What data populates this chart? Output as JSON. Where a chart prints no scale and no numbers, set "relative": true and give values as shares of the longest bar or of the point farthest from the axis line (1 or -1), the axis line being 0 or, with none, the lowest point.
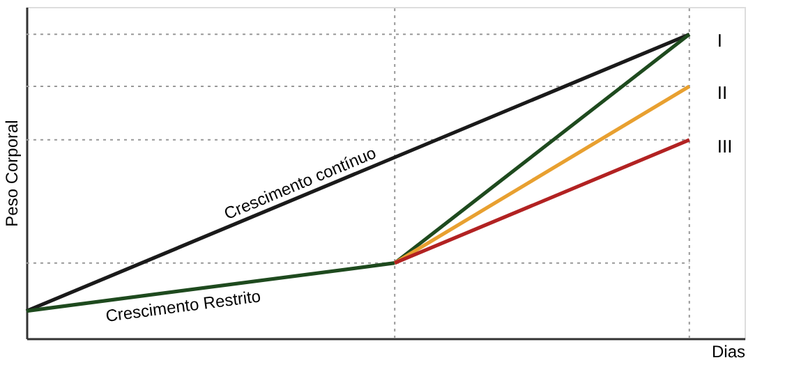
{
  "chart_data": {
    "type": "line",
    "relative": true,
    "xlabel": "Dias",
    "ylabel": "Peso Corporal",
    "categories": [
      null,
      null,
      null,
      null,
      null,
      null,
      null,
      null,
      null,
      null
    ],
    "series": [
      {
        "name": "Crescimento contínuo",
        "color": "#1a1a1a",
        "values": [
          0.09,
          null,
          null,
          null,
          null,
          null,
          null,
          null,
          null,
          1.0
        ]
      },
      {
        "name": "Crescimento Restrito",
        "color": "#1e4a1e",
        "values": [
          0.09,
          null,
          null,
          null,
          null,
          0.248,
          null,
          null,
          null,
          null
        ]
      },
      {
        "name": "I",
        "color": "#1e4a1e",
        "values": [
          null,
          null,
          null,
          null,
          null,
          0.248,
          null,
          null,
          null,
          1.0
        ]
      },
      {
        "name": "II",
        "color": "#e8a030",
        "values": [
          null,
          null,
          null,
          null,
          null,
          0.248,
          null,
          null,
          null,
          0.829
        ]
      },
      {
        "name": "III",
        "color": "#b22222",
        "values": [
          null,
          null,
          null,
          null,
          null,
          0.248,
          null,
          null,
          null,
          0.653
        ]
      }
    ],
    "grid": false,
    "tick_labels": false,
    "line_style": "solid",
    "marker": "none"
  }
}
